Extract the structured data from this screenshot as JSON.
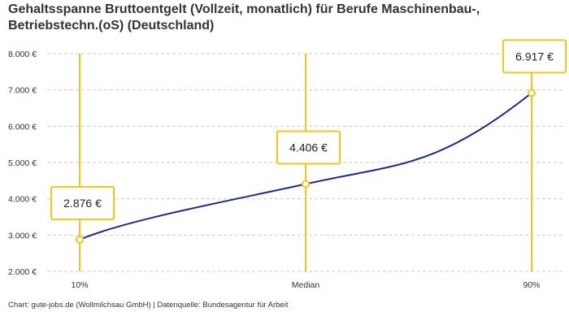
{
  "chart_data": {
    "type": "line",
    "title": "Gehaltsspanne Bruttoentgelt (Vollzeit, monatlich) für Berufe Maschinenbau-, Betriebstechn.(oS) (Deutschland)",
    "categories": [
      "10%",
      "Median",
      "90%"
    ],
    "values": [
      2876,
      4406,
      6917
    ],
    "data_labels": [
      "2.876 €",
      "4.406 €",
      "6.917 €"
    ],
    "ylim": [
      2000,
      8000
    ],
    "yticks": [
      2000,
      3000,
      4000,
      5000,
      6000,
      7000,
      8000
    ],
    "ytick_labels": [
      "2.000 €",
      "3.000 €",
      "4.000 €",
      "5.000 €",
      "6.000 €",
      "7.000 €",
      "8.000 €"
    ],
    "grid": "horizontal dashed",
    "colors": {
      "line": "#1f2a8a",
      "marker": "#f6c416",
      "gridline": "#cccccc"
    }
  },
  "source": "Chart: gute-jobs.de (Wollmilchsau GmbH) | Datenquelle: Bundesagentur für Arbeit"
}
